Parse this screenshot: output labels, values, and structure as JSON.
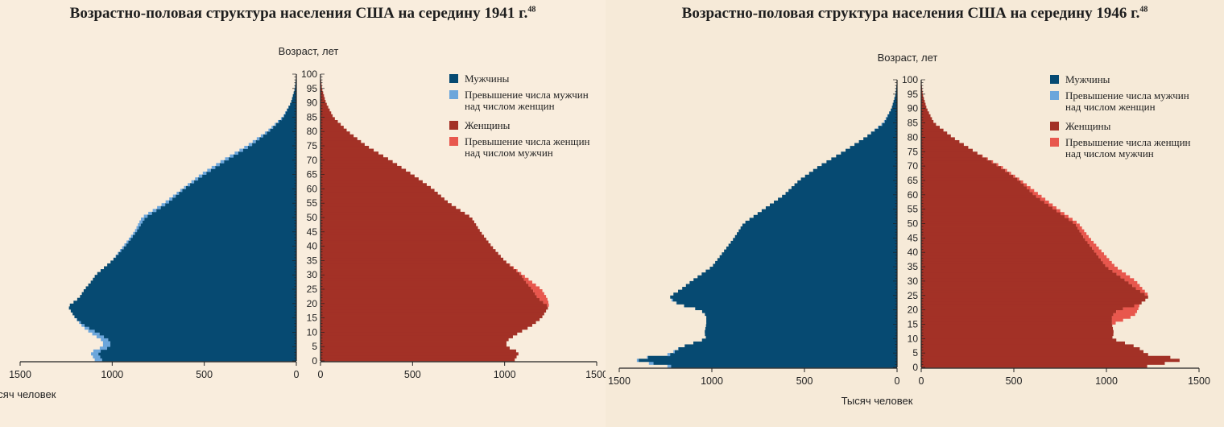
{
  "chart_data": [
    {
      "type": "population-pyramid",
      "title": "Возрастно-половая структура населения США на середину 1941 г.",
      "title_footnote": "48",
      "ylabel": "Возраст, лет",
      "xlabel": "Тысяч человек",
      "x_ticks": [
        "1500",
        "1000",
        "500",
        "0"
      ],
      "y_ticks": [
        "0",
        "5",
        "10",
        "15",
        "20",
        "25",
        "30",
        "35",
        "40",
        "45",
        "50",
        "55",
        "60",
        "65",
        "70",
        "75",
        "80",
        "85",
        "90",
        "95",
        "100"
      ],
      "xlim": [
        0,
        1500
      ],
      "ylim": [
        0,
        100
      ],
      "legend": [
        {
          "label": "Мужчины",
          "color": "#064a72"
        },
        {
          "label": "Превышение числа мужчин над числом женщин",
          "color": "#6ca6db"
        },
        {
          "label": "Женщины",
          "color": "#a33126"
        },
        {
          "label": "Превышение числа женщин над числом мужчин",
          "color": "#e8574d"
        }
      ],
      "age_points": [
        0,
        3,
        5,
        7,
        10,
        12,
        15,
        18,
        19,
        20,
        22,
        25,
        28,
        30,
        35,
        40,
        45,
        50,
        55,
        60,
        65,
        70,
        75,
        80,
        85,
        90,
        95,
        100
      ],
      "male_points": [
        1090,
        1120,
        1050,
        1050,
        1120,
        1160,
        1200,
        1230,
        1240,
        1220,
        1180,
        1150,
        1110,
        1090,
        1000,
        940,
        880,
        840,
        720,
        620,
        520,
        400,
        270,
        160,
        75,
        30,
        8,
        0
      ],
      "female_points": [
        1050,
        1080,
        1010,
        1010,
        1080,
        1140,
        1200,
        1230,
        1240,
        1240,
        1230,
        1200,
        1140,
        1100,
        1000,
        930,
        870,
        820,
        700,
        610,
        500,
        380,
        250,
        150,
        70,
        30,
        8,
        0
      ]
    },
    {
      "type": "population-pyramid",
      "title": "Возрастно-половая структура населения США на середину 1946 г.",
      "title_footnote": "48",
      "ylabel": "Возраст, лет",
      "xlabel": "Тысяч человек",
      "x_ticks": [
        "1500",
        "1000",
        "500",
        "0"
      ],
      "y_ticks": [
        "0",
        "5",
        "10",
        "15",
        "20",
        "25",
        "30",
        "35",
        "40",
        "45",
        "50",
        "55",
        "60",
        "65",
        "70",
        "75",
        "80",
        "85",
        "90",
        "95",
        "100"
      ],
      "xlim": [
        0,
        1500
      ],
      "ylim": [
        0,
        100
      ],
      "legend": [
        {
          "label": "Мужчины",
          "color": "#064a72"
        },
        {
          "label": "Превышение числа мужчин над числом женщин",
          "color": "#6ca6db"
        },
        {
          "label": "Женщины",
          "color": "#a33126"
        },
        {
          "label": "Превышение числа женщин над числом мужчин",
          "color": "#e8574d"
        }
      ],
      "age_points": [
        0,
        1,
        2,
        3,
        4,
        5,
        7,
        10,
        12,
        15,
        18,
        20,
        22,
        24,
        25,
        27,
        30,
        35,
        40,
        45,
        50,
        55,
        60,
        65,
        70,
        75,
        80,
        85,
        90,
        95,
        100
      ],
      "male_points": [
        1170,
        1310,
        1370,
        1440,
        1260,
        1220,
        1170,
        1030,
        1040,
        1030,
        1030,
        1060,
        1180,
        1230,
        1220,
        1170,
        1110,
        1000,
        940,
        880,
        830,
        720,
        610,
        530,
        420,
        290,
        170,
        75,
        30,
        8,
        0
      ],
      "female_points": [
        1150,
        1290,
        1340,
        1450,
        1240,
        1210,
        1170,
        1030,
        1040,
        1030,
        1150,
        1170,
        1180,
        1220,
        1230,
        1200,
        1160,
        1050,
        980,
        910,
        850,
        740,
        640,
        540,
        430,
        290,
        170,
        70,
        30,
        8,
        0
      ]
    }
  ]
}
